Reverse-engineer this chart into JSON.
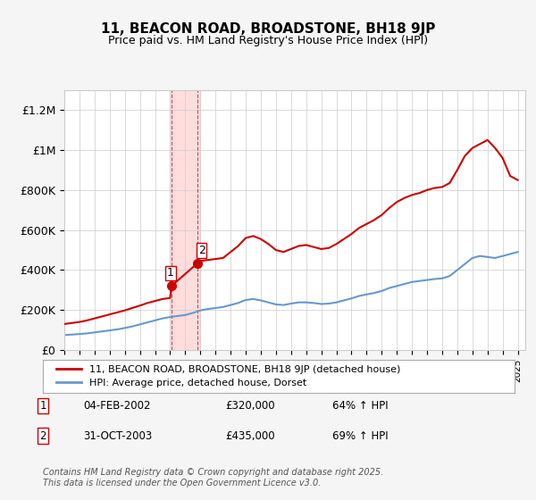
{
  "title": "11, BEACON ROAD, BROADSTONE, BH18 9JP",
  "subtitle": "Price paid vs. HM Land Registry's House Price Index (HPI)",
  "ylabel_ticks": [
    "£0",
    "£200K",
    "£400K",
    "£600K",
    "£800K",
    "£1M",
    "£1.2M"
  ],
  "ytick_values": [
    0,
    200000,
    400000,
    600000,
    800000,
    1000000,
    1200000
  ],
  "ylim": [
    0,
    1300000
  ],
  "xlim_start": 1995.0,
  "xlim_end": 2025.5,
  "sale1": {
    "label": "1",
    "date": "04-FEB-2002",
    "price": 320000,
    "hpi": "64% ↑ HPI",
    "x": 2002.09
  },
  "sale2": {
    "label": "2",
    "date": "31-OCT-2003",
    "price": 435000,
    "hpi": "69% ↑ HPI",
    "x": 2003.83
  },
  "shaded_x1": 2002.0,
  "shaded_x2": 2004.0,
  "legend_line1": "11, BEACON ROAD, BROADSTONE, BH18 9JP (detached house)",
  "legend_line2": "HPI: Average price, detached house, Dorset",
  "footer": "Contains HM Land Registry data © Crown copyright and database right 2025.\nThis data is licensed under the Open Government Licence v3.0.",
  "line_color_red": "#cc0000",
  "line_color_blue": "#6699cc",
  "shaded_color": "#ffdddd",
  "background_color": "#f5f5f5",
  "plot_background": "#ffffff",
  "hpi_series_x": [
    1995,
    1995.5,
    1996,
    1996.5,
    1997,
    1997.5,
    1998,
    1998.5,
    1999,
    1999.5,
    2000,
    2000.5,
    2001,
    2001.5,
    2002,
    2002.5,
    2003,
    2003.5,
    2004,
    2004.5,
    2005,
    2005.5,
    2006,
    2006.5,
    2007,
    2007.5,
    2008,
    2008.5,
    2009,
    2009.5,
    2010,
    2010.5,
    2011,
    2011.5,
    2012,
    2012.5,
    2013,
    2013.5,
    2014,
    2014.5,
    2015,
    2015.5,
    2016,
    2016.5,
    2017,
    2017.5,
    2018,
    2018.5,
    2019,
    2019.5,
    2020,
    2020.5,
    2021,
    2021.5,
    2022,
    2022.5,
    2023,
    2023.5,
    2024,
    2024.5,
    2025
  ],
  "hpi_series_y": [
    75000,
    77000,
    80000,
    83000,
    88000,
    93000,
    98000,
    103000,
    110000,
    118000,
    128000,
    138000,
    148000,
    158000,
    165000,
    170000,
    175000,
    185000,
    198000,
    205000,
    210000,
    215000,
    225000,
    235000,
    250000,
    255000,
    248000,
    238000,
    228000,
    225000,
    232000,
    238000,
    238000,
    235000,
    230000,
    232000,
    238000,
    248000,
    258000,
    270000,
    278000,
    285000,
    295000,
    310000,
    320000,
    330000,
    340000,
    345000,
    350000,
    355000,
    358000,
    370000,
    400000,
    430000,
    460000,
    470000,
    465000,
    460000,
    470000,
    480000,
    490000
  ],
  "price_series_x": [
    1995,
    1995.5,
    1996,
    1996.5,
    1997,
    1997.5,
    1998,
    1998.5,
    1999,
    1999.5,
    2000,
    2000.5,
    2001,
    2001.5,
    2002,
    2002.09,
    2003.83,
    2004,
    2004.5,
    2005,
    2005.5,
    2006,
    2006.5,
    2007,
    2007.5,
    2008,
    2008.5,
    2009,
    2009.5,
    2010,
    2010.5,
    2011,
    2011.5,
    2012,
    2012.5,
    2013,
    2013.5,
    2014,
    2014.5,
    2015,
    2015.5,
    2016,
    2016.5,
    2017,
    2017.5,
    2018,
    2018.5,
    2019,
    2019.5,
    2020,
    2020.5,
    2021,
    2021.5,
    2022,
    2022.5,
    2023,
    2023.5,
    2024,
    2024.5,
    2025
  ],
  "price_series_y": [
    130000,
    135000,
    140000,
    148000,
    158000,
    168000,
    178000,
    188000,
    198000,
    210000,
    222000,
    235000,
    245000,
    255000,
    260000,
    320000,
    435000,
    445000,
    450000,
    455000,
    460000,
    490000,
    520000,
    560000,
    570000,
    555000,
    530000,
    500000,
    490000,
    505000,
    520000,
    525000,
    515000,
    505000,
    510000,
    530000,
    555000,
    580000,
    610000,
    630000,
    650000,
    675000,
    710000,
    740000,
    760000,
    775000,
    785000,
    800000,
    810000,
    815000,
    835000,
    900000,
    970000,
    1010000,
    1030000,
    1050000,
    1010000,
    960000,
    870000,
    850000
  ]
}
